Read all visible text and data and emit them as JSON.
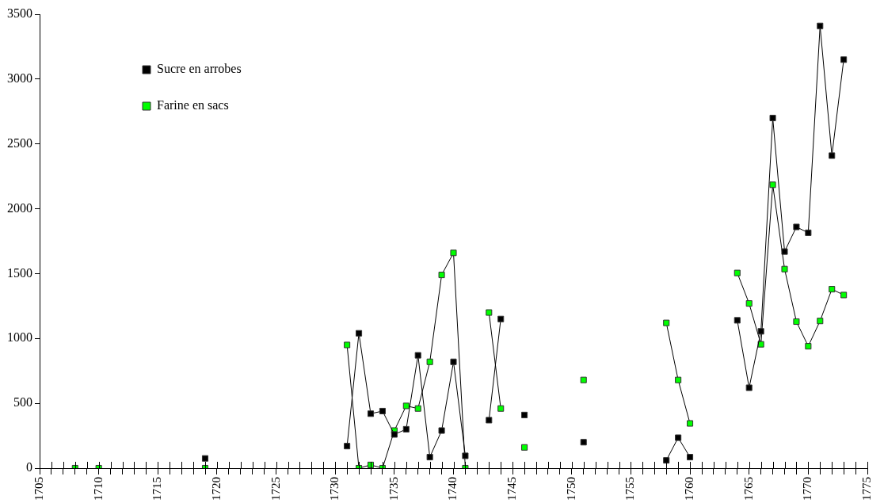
{
  "chart_data": {
    "type": "line",
    "xlim": [
      1705,
      1775
    ],
    "xticks": [
      1705,
      {
        "value": 1706,
        "label": null
      },
      {
        "value": 1707,
        "label": null
      },
      {
        "value": 1708,
        "label": null
      },
      {
        "value": 1709,
        "label": null
      },
      1710,
      {
        "value": 1711,
        "label": null
      },
      {
        "value": 1712,
        "label": null
      },
      {
        "value": 1713,
        "label": null
      },
      {
        "value": 1714,
        "label": null
      },
      1715,
      {
        "value": 1716,
        "label": null
      },
      {
        "value": 1717,
        "label": null
      },
      {
        "value": 1718,
        "label": null
      },
      {
        "value": 1719,
        "label": null
      },
      1720,
      {
        "value": 1721,
        "label": null
      },
      {
        "value": 1722,
        "label": null
      },
      {
        "value": 1723,
        "label": null
      },
      {
        "value": 1724,
        "label": null
      },
      1725,
      {
        "value": 1726,
        "label": null
      },
      {
        "value": 1727,
        "label": null
      },
      {
        "value": 1728,
        "label": null
      },
      {
        "value": 1729,
        "label": null
      },
      1730,
      {
        "value": 1731,
        "label": null
      },
      {
        "value": 1732,
        "label": null
      },
      {
        "value": 1733,
        "label": null
      },
      {
        "value": 1734,
        "label": null
      },
      1735,
      {
        "value": 1736,
        "label": null
      },
      {
        "value": 1737,
        "label": null
      },
      {
        "value": 1738,
        "label": null
      },
      {
        "value": 1739,
        "label": null
      },
      1740,
      {
        "value": 1741,
        "label": null
      },
      {
        "value": 1742,
        "label": null
      },
      {
        "value": 1743,
        "label": null
      },
      {
        "value": 1744,
        "label": null
      },
      1745,
      {
        "value": 1746,
        "label": null
      },
      {
        "value": 1747,
        "label": null
      },
      {
        "value": 1748,
        "label": null
      },
      {
        "value": 1749,
        "label": null
      },
      1750,
      {
        "value": 1751,
        "label": null
      },
      {
        "value": 1752,
        "label": null
      },
      {
        "value": 1753,
        "label": null
      },
      {
        "value": 1754,
        "label": null
      },
      1755,
      {
        "value": 1756,
        "label": null
      },
      {
        "value": 1757,
        "label": null
      },
      {
        "value": 1758,
        "label": null
      },
      {
        "value": 1759,
        "label": null
      },
      1760,
      {
        "value": 1761,
        "label": null
      },
      {
        "value": 1762,
        "label": null
      },
      {
        "value": 1763,
        "label": null
      },
      {
        "value": 1764,
        "label": null
      },
      1765,
      {
        "value": 1766,
        "label": null
      },
      {
        "value": 1767,
        "label": null
      },
      {
        "value": 1768,
        "label": null
      },
      {
        "value": 1769,
        "label": null
      },
      1770,
      {
        "value": 1771,
        "label": null
      },
      {
        "value": 1772,
        "label": null
      },
      {
        "value": 1773,
        "label": null
      },
      {
        "value": 1774,
        "label": null
      },
      1775
    ],
    "ylim": [
      0,
      3500
    ],
    "yticks": [
      0,
      500,
      1000,
      1500,
      2000,
      2500,
      3000,
      3500
    ],
    "grid": false,
    "legend": "top left",
    "marker": "square",
    "line_style": "solid",
    "series": [
      {
        "name": "Sucre en arrobes",
        "color": "#000000",
        "x": [
          1719,
          1720,
          1731,
          1732,
          1733,
          1734,
          1735,
          1736,
          1737,
          1738,
          1739,
          1740,
          1741,
          1742,
          1743,
          1744,
          1745,
          1746,
          1747,
          1751,
          1752,
          1758,
          1759,
          1760,
          1761,
          1764,
          1765,
          1766,
          1767,
          1768,
          1769,
          1770,
          1771,
          1772,
          1773
        ],
        "values": [
          75,
          null,
          170,
          1040,
          420,
          440,
          260,
          300,
          870,
          85,
          290,
          820,
          95,
          null,
          370,
          1150,
          null,
          410,
          null,
          200,
          null,
          60,
          235,
          85,
          null,
          1140,
          620,
          1055,
          2700,
          1670,
          1860,
          1815,
          3410,
          2410,
          3150
        ]
      },
      {
        "name": "Farine en sacs",
        "color": "#00ff00",
        "x": [
          1708,
          1709,
          1710,
          1711,
          1719,
          1720,
          1731,
          1732,
          1733,
          1734,
          1735,
          1736,
          1737,
          1738,
          1739,
          1740,
          1741,
          1742,
          1743,
          1744,
          1745,
          1746,
          1747,
          1751,
          1752,
          1758,
          1759,
          1760,
          1761,
          1764,
          1765,
          1766,
          1767,
          1768,
          1769,
          1770,
          1771,
          1772,
          1773
        ],
        "values": [
          0,
          null,
          0,
          null,
          0,
          null,
          950,
          0,
          25,
          0,
          290,
          480,
          460,
          820,
          1490,
          1660,
          0,
          null,
          1200,
          460,
          null,
          160,
          null,
          680,
          null,
          1120,
          680,
          345,
          null,
          1505,
          1270,
          955,
          2185,
          1535,
          1130,
          940,
          1135,
          1380,
          1335
        ]
      }
    ]
  }
}
